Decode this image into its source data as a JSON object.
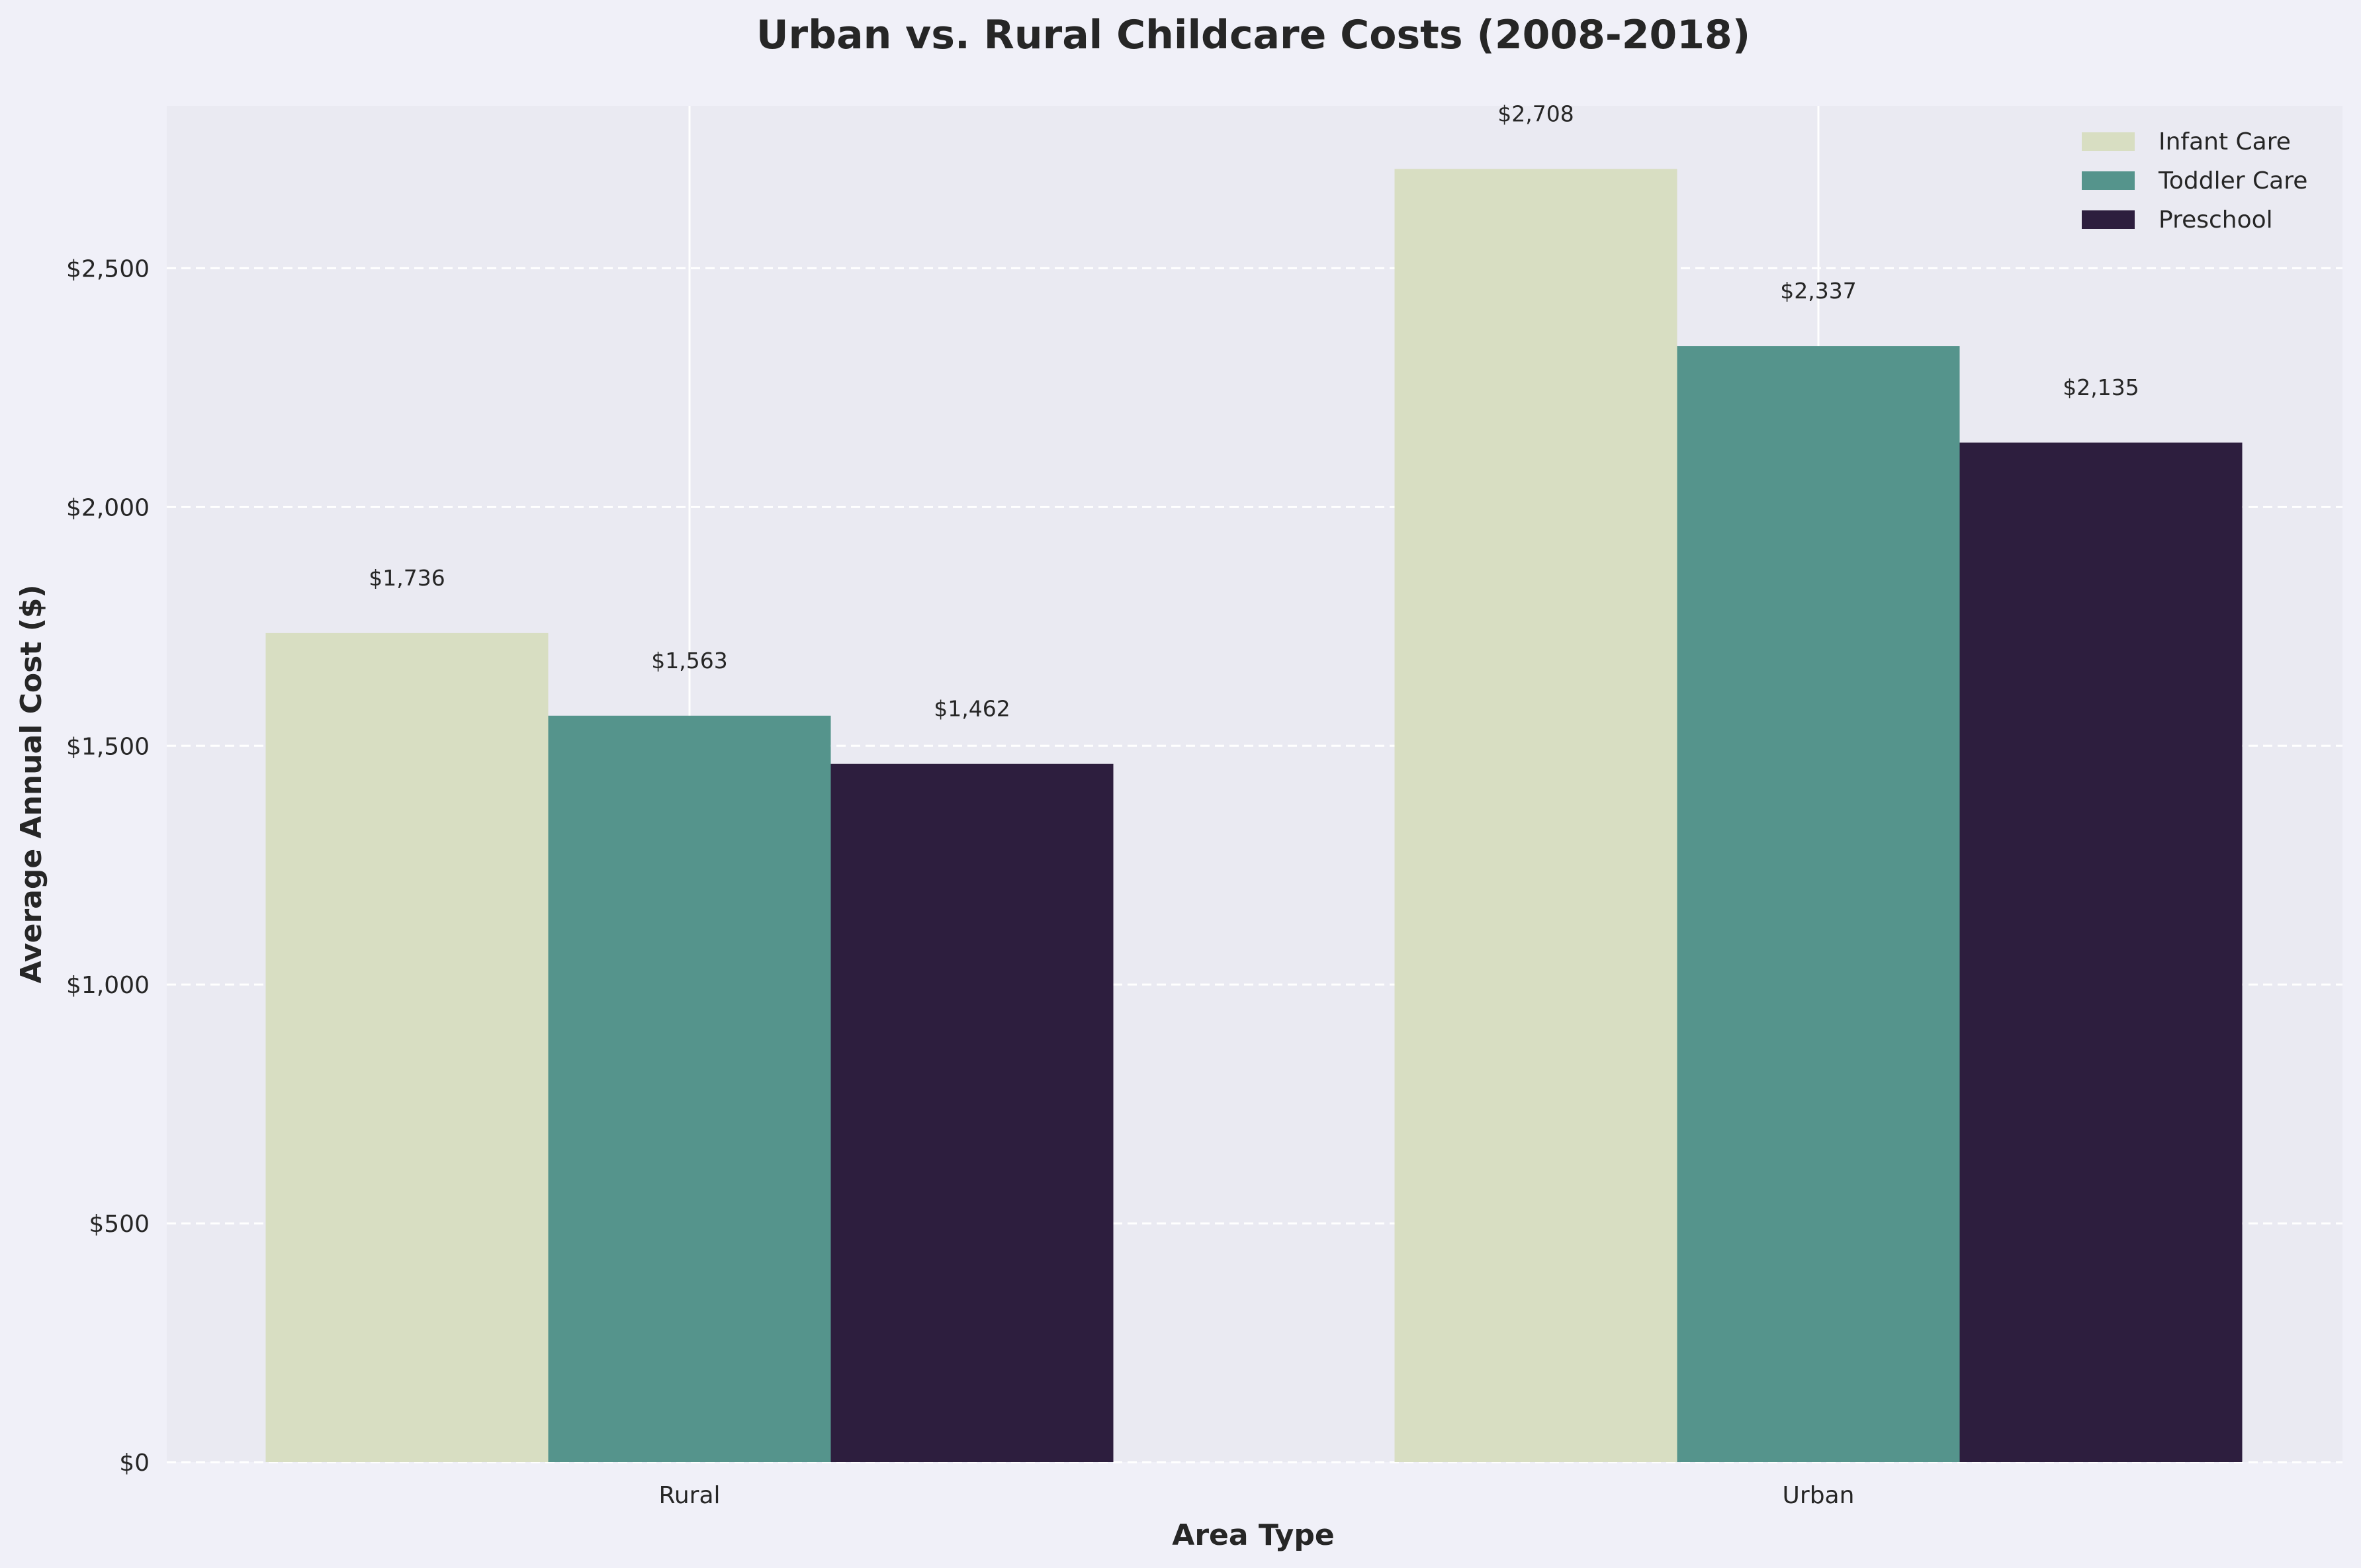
{
  "chart_data": {
    "type": "bar",
    "title": "Urban vs. Rural Childcare Costs (2008-2018)",
    "xlabel": "Area Type",
    "ylabel": "Average Annual Cost ($)",
    "categories": [
      "Rural",
      "Urban"
    ],
    "series": [
      {
        "name": "Infant Care",
        "values": [
          1736,
          2708
        ],
        "labels": [
          "$1,736",
          "$2,708"
        ],
        "color": "#d8dec2"
      },
      {
        "name": "Toddler Care",
        "values": [
          1563,
          2337
        ],
        "labels": [
          "$1,563",
          "$2,337"
        ],
        "color": "#55948c"
      },
      {
        "name": "Preschool",
        "values": [
          1462,
          2135
        ],
        "labels": [
          "$1,462",
          "$2,135"
        ],
        "color": "#2d1e3e"
      }
    ],
    "ylim": [
      0,
      2840
    ],
    "yticks": [
      0,
      500,
      1000,
      1500,
      2000,
      2500
    ],
    "ytick_labels": [
      "$0",
      "$500",
      "$1,000",
      "$1,500",
      "$2,000",
      "$2,500"
    ],
    "grid": "y dashed",
    "legend_position": "top-right",
    "plot_background": "#eaeaf2",
    "figure_background": "#f0f0f8"
  }
}
